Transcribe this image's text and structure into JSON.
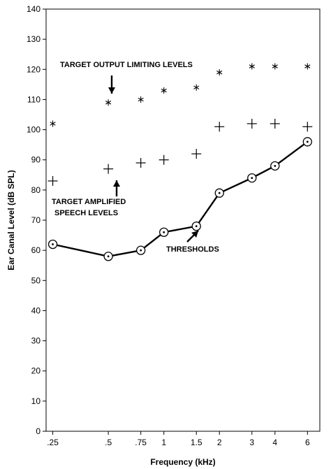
{
  "chart_data": {
    "type": "line",
    "title": "",
    "xlabel": "Frequency (kHz)",
    "ylabel": "Ear Canal Level (dB SPL)",
    "x_scale": "log",
    "xlim": [
      0.23,
      7.0
    ],
    "ylim": [
      0,
      140
    ],
    "y_ticks": [
      0,
      10,
      20,
      30,
      40,
      50,
      60,
      70,
      80,
      90,
      100,
      110,
      120,
      130,
      140
    ],
    "x_ticks": [
      {
        "value": 0.25,
        "label": ".25"
      },
      {
        "value": 0.5,
        "label": ".5"
      },
      {
        "value": 0.75,
        "label": ".75"
      },
      {
        "value": 1,
        "label": "1"
      },
      {
        "value": 1.5,
        "label": "1.5"
      },
      {
        "value": 2,
        "label": "2"
      },
      {
        "value": 3,
        "label": "3"
      },
      {
        "value": 4,
        "label": "4"
      },
      {
        "value": 6,
        "label": "6"
      }
    ],
    "grid": false,
    "series": [
      {
        "name": "TARGET OUTPUT LIMITING LEVELS",
        "marker": "asterisk",
        "line": false,
        "x": [
          0.25,
          0.5,
          0.75,
          1,
          1.5,
          2,
          3,
          4,
          6
        ],
        "values": [
          102,
          109,
          110,
          113,
          114,
          119,
          121,
          121,
          121
        ]
      },
      {
        "name": "TARGET AMPLIFIED SPEECH LEVELS",
        "marker": "plus",
        "line": false,
        "x": [
          0.25,
          0.5,
          0.75,
          1,
          1.5,
          2,
          3,
          4,
          6
        ],
        "values": [
          83,
          87,
          89,
          90,
          92,
          101,
          102,
          102,
          101
        ]
      },
      {
        "name": "THRESHOLDS",
        "marker": "circle-dot",
        "line": true,
        "x": [
          0.25,
          0.5,
          0.75,
          1,
          1.5,
          2,
          3,
          4,
          6
        ],
        "values": [
          62,
          58,
          60,
          66,
          68,
          79,
          84,
          88,
          96
        ]
      }
    ],
    "annotations": [
      {
        "lines": [
          "TARGET OUTPUT LIMITING LEVELS"
        ],
        "arrow_to": {
          "x": 0.5,
          "y": 109
        }
      },
      {
        "lines": [
          "TARGET AMPLIFIED",
          "SPEECH LEVELS"
        ],
        "arrow_to": {
          "x": 0.5,
          "y": 87
        }
      },
      {
        "lines": [
          "THRESHOLDS"
        ],
        "arrow_to": {
          "x": 1.5,
          "y": 68
        }
      }
    ]
  }
}
